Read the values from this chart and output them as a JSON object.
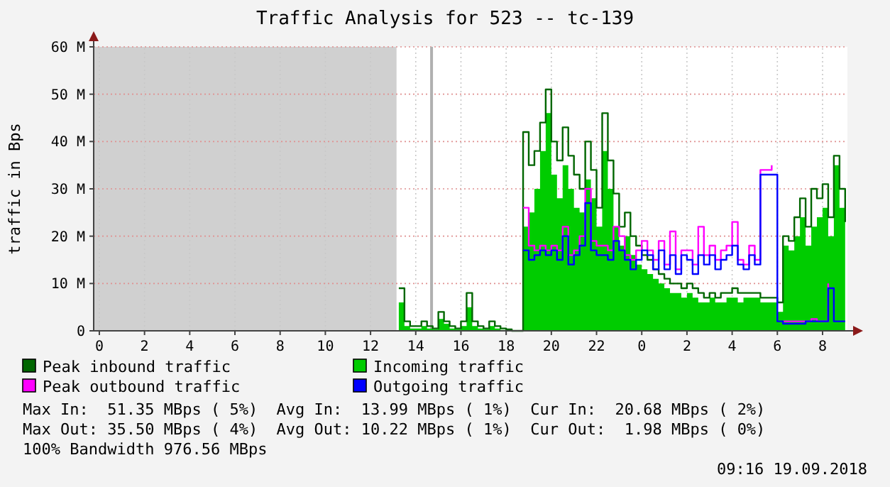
{
  "chart_data": {
    "type": "step",
    "title": "Traffic Analysis for 523 -- tc-139",
    "ylabel": "traffic in Bps",
    "x": [
      "2018-09-18T13:15",
      "2018-09-18T13:30",
      "2018-09-18T13:45",
      "2018-09-18T14:00",
      "2018-09-18T14:15",
      "2018-09-18T14:30",
      "2018-09-18T14:45",
      "2018-09-18T15:00",
      "2018-09-18T15:15",
      "2018-09-18T15:30",
      "2018-09-18T15:45",
      "2018-09-18T16:00",
      "2018-09-18T16:15",
      "2018-09-18T16:30",
      "2018-09-18T16:45",
      "2018-09-18T17:00",
      "2018-09-18T17:15",
      "2018-09-18T17:30",
      "2018-09-18T17:45",
      "2018-09-18T18:00",
      "2018-09-18T18:15",
      "2018-09-18T18:30",
      "2018-09-18T18:45",
      "2018-09-18T19:00",
      "2018-09-18T19:15",
      "2018-09-18T19:30",
      "2018-09-18T19:45",
      "2018-09-18T20:00",
      "2018-09-18T20:15",
      "2018-09-18T20:30",
      "2018-09-18T20:45",
      "2018-09-18T21:00",
      "2018-09-18T21:15",
      "2018-09-18T21:30",
      "2018-09-18T21:45",
      "2018-09-18T22:00",
      "2018-09-18T22:15",
      "2018-09-18T22:30",
      "2018-09-18T22:45",
      "2018-09-18T23:00",
      "2018-09-18T23:15",
      "2018-09-18T23:30",
      "2018-09-18T23:45",
      "2018-09-19T00:00",
      "2018-09-19T00:15",
      "2018-09-19T00:30",
      "2018-09-19T00:45",
      "2018-09-19T01:00",
      "2018-09-19T01:15",
      "2018-09-19T01:30",
      "2018-09-19T01:45",
      "2018-09-19T02:00",
      "2018-09-19T02:15",
      "2018-09-19T02:30",
      "2018-09-19T02:45",
      "2018-09-19T03:00",
      "2018-09-19T03:15",
      "2018-09-19T03:30",
      "2018-09-19T03:45",
      "2018-09-19T04:00",
      "2018-09-19T04:15",
      "2018-09-19T04:30",
      "2018-09-19T04:45",
      "2018-09-19T05:00",
      "2018-09-19T05:15",
      "2018-09-19T05:30",
      "2018-09-19T05:45",
      "2018-09-19T06:00",
      "2018-09-19T06:15",
      "2018-09-19T06:30",
      "2018-09-19T06:45",
      "2018-09-19T07:00",
      "2018-09-19T07:15",
      "2018-09-19T07:30",
      "2018-09-19T07:45",
      "2018-09-19T08:00",
      "2018-09-19T08:15",
      "2018-09-19T08:30",
      "2018-09-19T08:45",
      "2018-09-19T09:00"
    ],
    "series": [
      {
        "name": "Peak inbound traffic",
        "color": "#006600",
        "values": [
          9,
          2,
          1,
          1,
          2,
          1,
          0.5,
          4,
          2,
          1,
          0.5,
          2,
          8,
          2,
          1,
          0.5,
          2,
          1,
          0.5,
          0.3,
          0,
          0,
          42,
          35,
          38,
          44,
          51,
          40,
          36,
          43,
          37,
          33,
          30,
          40,
          34,
          26,
          46,
          36,
          29,
          22,
          25,
          20,
          18,
          16,
          15,
          13,
          12,
          11,
          10,
          10,
          9,
          10,
          9,
          8,
          7,
          8,
          7,
          8,
          8,
          9,
          8,
          8,
          8,
          8,
          7,
          7,
          7,
          6,
          20,
          19,
          24,
          28,
          22,
          30,
          28,
          31,
          24,
          37,
          30,
          23
        ]
      },
      {
        "name": "Incoming traffic",
        "type": "area",
        "color": "#00cc00",
        "values": [
          6,
          1,
          0.5,
          0.5,
          1,
          0.5,
          0.3,
          2.5,
          1.5,
          0.5,
          0.3,
          1,
          5,
          1,
          0.5,
          0.3,
          1,
          0.5,
          0.2,
          0.1,
          0,
          0,
          22,
          25,
          30,
          38,
          46,
          33,
          28,
          35,
          30,
          26,
          25,
          32,
          28,
          22,
          38,
          30,
          22,
          18,
          20,
          16,
          14,
          13,
          12,
          11,
          10,
          9,
          8,
          8,
          7,
          8,
          7,
          6,
          6,
          7,
          6,
          6,
          7,
          7,
          6,
          7,
          7,
          7,
          6,
          6,
          6,
          4,
          18,
          17,
          20,
          24,
          18,
          22,
          24,
          26,
          20,
          35,
          26,
          20
        ]
      },
      {
        "name": "Peak outbound traffic",
        "color": "#ff00ff",
        "values": [
          null,
          null,
          null,
          null,
          null,
          null,
          null,
          null,
          null,
          null,
          null,
          null,
          null,
          null,
          null,
          null,
          null,
          null,
          null,
          null,
          null,
          null,
          26,
          18,
          17,
          18,
          17,
          18,
          17,
          22,
          16,
          17,
          20,
          30,
          19,
          18,
          18,
          17,
          22,
          20,
          16,
          15,
          17,
          19,
          17,
          15,
          19,
          14,
          21,
          13,
          17,
          17,
          14,
          22,
          16,
          18,
          15,
          17,
          18,
          23,
          15,
          14,
          18,
          15,
          34,
          34,
          35,
          null,
          2,
          2,
          2,
          2,
          2,
          2.5,
          2,
          2,
          10,
          null,
          null,
          null
        ]
      },
      {
        "name": "Outgoing traffic",
        "color": "#0000ff",
        "values": [
          null,
          null,
          null,
          null,
          null,
          null,
          null,
          null,
          null,
          null,
          null,
          null,
          null,
          null,
          null,
          null,
          null,
          null,
          null,
          null,
          null,
          null,
          17,
          15,
          16,
          17,
          16,
          17,
          15,
          20,
          14,
          16,
          18,
          27,
          17,
          16,
          16,
          15,
          19,
          17,
          15,
          13,
          15,
          17,
          16,
          13,
          17,
          13,
          16,
          12,
          16,
          15,
          12,
          16,
          14,
          16,
          13,
          15,
          16,
          18,
          14,
          13,
          16,
          14,
          33,
          33,
          33,
          2,
          1.5,
          1.5,
          1.5,
          1.5,
          2,
          2,
          2,
          2,
          9,
          2,
          2,
          2
        ]
      }
    ],
    "xlim": [
      "2018-09-17T23:45",
      "2018-09-19T09:06"
    ],
    "xticks": [
      {
        "value": "2018-09-18T00:00",
        "label": "0"
      },
      {
        "value": "2018-09-18T02:00",
        "label": "2"
      },
      {
        "value": "2018-09-18T04:00",
        "label": "4"
      },
      {
        "value": "2018-09-18T06:00",
        "label": "6"
      },
      {
        "value": "2018-09-18T08:00",
        "label": "8"
      },
      {
        "value": "2018-09-18T10:00",
        "label": "10"
      },
      {
        "value": "2018-09-18T12:00",
        "label": "12"
      },
      {
        "value": "2018-09-18T14:00",
        "label": "14"
      },
      {
        "value": "2018-09-18T16:00",
        "label": "16"
      },
      {
        "value": "2018-09-18T18:00",
        "label": "18"
      },
      {
        "value": "2018-09-18T20:00",
        "label": "20"
      },
      {
        "value": "2018-09-18T22:00",
        "label": "22"
      },
      {
        "value": "2018-09-19T00:00",
        "label": "0"
      },
      {
        "value": "2018-09-19T02:00",
        "label": "2"
      },
      {
        "value": "2018-09-19T04:00",
        "label": "4"
      },
      {
        "value": "2018-09-19T06:00",
        "label": "6"
      },
      {
        "value": "2018-09-19T08:00",
        "label": "8"
      }
    ],
    "ylim": [
      0,
      60
    ],
    "yticks": [
      0,
      {
        "value": 10,
        "label": "10 M"
      },
      {
        "value": 20,
        "label": "20 M"
      },
      {
        "value": 30,
        "label": "30 M"
      },
      {
        "value": 40,
        "label": "40 M"
      },
      {
        "value": 50,
        "label": "50 M"
      },
      {
        "value": 60,
        "label": "60 M"
      }
    ],
    "grid": true,
    "legend": "bottom",
    "bands": [
      {
        "axis": "x",
        "from": "2018-09-17T23:45",
        "to": "2018-09-18T13:09",
        "color": "#d0d0d0"
      }
    ],
    "ref_lines": [
      {
        "axis": "x",
        "value": "2018-09-18T14:42",
        "color": "#b0b0b0"
      }
    ],
    "annotations": [
      "Max In:  51.35 MBps ( 5%)  Avg In:  13.99 MBps ( 1%)  Cur In:  20.68 MBps ( 2%)",
      "Max Out: 35.50 MBps ( 4%)  Avg Out: 10.22 MBps ( 1%)  Cur Out:  1.98 MBps ( 0%)",
      "100% Bandwidth 976.56 MBps",
      "09:16 19.09.2018"
    ]
  }
}
